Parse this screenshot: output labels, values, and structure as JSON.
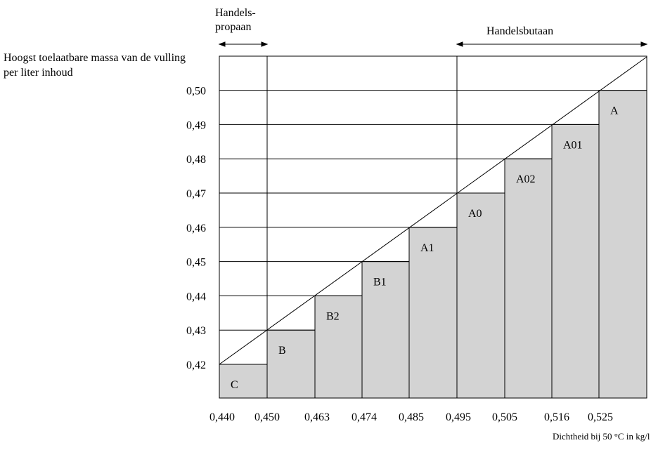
{
  "chart_data": {
    "type": "bar",
    "ylabel": "Hoogst toelaatbare massa van de vulling per liter inhoud",
    "xlabel": "Dichtheid bij 50 °C in kg/l",
    "x_ticks": [
      "0,440",
      "0,450",
      "0,463",
      "0,474",
      "0,485",
      "0,495",
      "0,505",
      "0,516",
      "0,525"
    ],
    "y_ticks": [
      "0,42",
      "0,43",
      "0,44",
      "0,45",
      "0,46",
      "0,47",
      "0,48",
      "0,49",
      "0,50"
    ],
    "bars": [
      {
        "label": "C",
        "value": 0.42
      },
      {
        "label": "B",
        "value": 0.43
      },
      {
        "label": "B2",
        "value": 0.44
      },
      {
        "label": "B1",
        "value": 0.45
      },
      {
        "label": "A1",
        "value": 0.46
      },
      {
        "label": "A0",
        "value": 0.47
      },
      {
        "label": "A02",
        "value": 0.48
      },
      {
        "label": "A01",
        "value": 0.49
      },
      {
        "label": "A",
        "value": 0.5
      }
    ],
    "ranges": [
      {
        "label_line1": "Handels-",
        "label_line2": "propaan"
      },
      {
        "label": "Handelsbutaan"
      }
    ],
    "bar_color": "#d3d3d3"
  }
}
